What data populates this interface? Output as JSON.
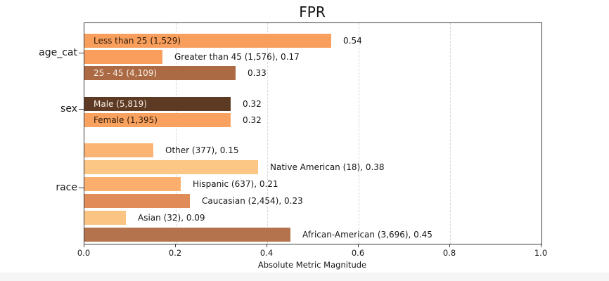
{
  "chart_data": {
    "type": "bar",
    "orientation": "horizontal",
    "title": "FPR",
    "xlabel": "Absolute Metric Magnitude",
    "xlim": [
      0.0,
      1.0
    ],
    "xticks": [
      "0.0",
      "0.2",
      "0.4",
      "0.6",
      "0.8",
      "1.0"
    ],
    "grid": "vertical-dashed",
    "legend_position": "none",
    "groups": [
      {
        "label": "age_cat",
        "bars": [
          {
            "name": "Less than 25",
            "count": "1,529",
            "value": 0.54,
            "color": "#F99F5D",
            "inside_label": "Less than 25 (1,529)",
            "inside_label_color": "#2E1907",
            "outside_label": "0.54"
          },
          {
            "name": "Greater than 45",
            "count": "1,576",
            "value": 0.17,
            "color": "#F99E5C",
            "outside_label": "Greater than 45 (1,576), 0.17"
          },
          {
            "name": "25 - 45",
            "count": "4,109",
            "value": 0.33,
            "color": "#AC6A44",
            "inside_label": "25 - 45 (4,109)",
            "inside_label_color": "#F8EFE5",
            "outside_label": "0.33"
          }
        ]
      },
      {
        "label": "sex",
        "bars": [
          {
            "name": "Male",
            "count": "5,819",
            "value": 0.32,
            "color": "#5D3A23",
            "inside_label": "Male (5,819)",
            "inside_label_color": "#F8EFE5",
            "outside_label": "0.32"
          },
          {
            "name": "Female",
            "count": "1,395",
            "value": 0.32,
            "color": "#F9A260",
            "inside_label": "Female (1,395)",
            "inside_label_color": "#2E1907",
            "outside_label": "0.32"
          }
        ]
      },
      {
        "label": "race",
        "bars": [
          {
            "name": "Other",
            "count": "377",
            "value": 0.15,
            "color": "#FBB474",
            "outside_label": "Other (377), 0.15"
          },
          {
            "name": "Native American",
            "count": "18",
            "value": 0.38,
            "color": "#FCC685",
            "outside_label": "Native American (18), 0.38"
          },
          {
            "name": "Hispanic",
            "count": "637",
            "value": 0.21,
            "color": "#FAAF6D",
            "outside_label": "Hispanic (637), 0.21"
          },
          {
            "name": "Caucasian",
            "count": "2,454",
            "value": 0.23,
            "color": "#E08B58",
            "outside_label": "Caucasian (2,454), 0.23"
          },
          {
            "name": "Asian",
            "count": "32",
            "value": 0.09,
            "color": "#FBC482",
            "outside_label": "Asian (32), 0.09"
          },
          {
            "name": "African-American",
            "count": "3,696",
            "value": 0.45,
            "color": "#B4734C",
            "outside_label": "African-American (3,696), 0.45"
          }
        ]
      }
    ]
  }
}
